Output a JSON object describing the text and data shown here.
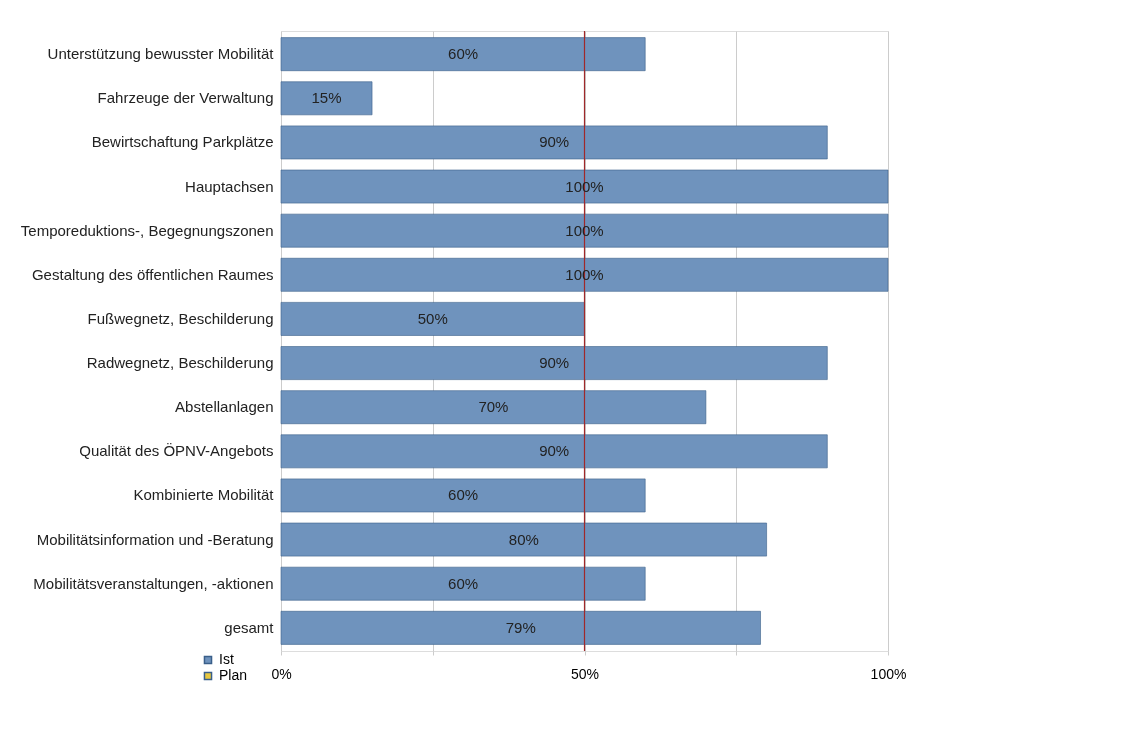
{
  "chart_data": {
    "type": "bar",
    "orientation": "horizontal",
    "categories": [
      "Unterstützung bewusster Mobilität",
      "Fahrzeuge der Verwaltung",
      "Bewirtschaftung Parkplätze",
      "Hauptachsen",
      "Temporeduktions-, Begegnungszonen",
      "Gestaltung des öffentlichen Raumes",
      "Fußwegnetz, Beschilderung",
      "Radwegnetz, Beschilderung",
      "Abstellanlagen",
      "Qualität des ÖPNV-Angebots",
      "Kombinierte Mobilität",
      "Mobilitätsinformation und -Beratung",
      "Mobilitätsveranstaltungen, -aktionen",
      "gesamt"
    ],
    "series": [
      {
        "name": "Ist",
        "color": "#6f93bd",
        "values": [
          60,
          15,
          90,
          100,
          100,
          100,
          50,
          90,
          70,
          90,
          60,
          80,
          60,
          79
        ],
        "value_labels": [
          "60%",
          "15%",
          "90%",
          "100%",
          "100%",
          "100%",
          "50%",
          "90%",
          "70%",
          "90%",
          "60%",
          "80%",
          "60%",
          "79%"
        ]
      },
      {
        "name": "Plan",
        "color": "#e8c840",
        "values": [
          null,
          null,
          null,
          null,
          null,
          null,
          null,
          null,
          null,
          null,
          null,
          null,
          null,
          null
        ]
      }
    ],
    "xlim": [
      0,
      100
    ],
    "xticks": [
      {
        "value": 0,
        "label": "0%"
      },
      {
        "value": 25,
        "label": null
      },
      {
        "value": 50,
        "label": "50%"
      },
      {
        "value": 75,
        "label": null
      },
      {
        "value": 100,
        "label": "100%"
      }
    ],
    "ref_lines": [
      {
        "axis": "x",
        "value": 50,
        "color": "#a0282a"
      }
    ],
    "grid": "x",
    "legend": "bottom left"
  }
}
